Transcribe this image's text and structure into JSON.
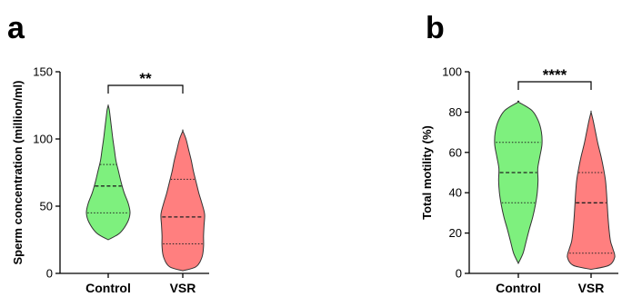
{
  "colors": {
    "control": "#7ef07e",
    "vsr": "#ff7f7f"
  },
  "chart_data": [
    {
      "type": "violin",
      "panel": "a",
      "ylabel": "Sperm concentration (million/ml)",
      "ylim": [
        0,
        150
      ],
      "yticks": [
        "0",
        "50",
        "100",
        "150"
      ],
      "categories": [
        "Control",
        "VSR"
      ],
      "significance": "**",
      "groups": [
        {
          "category": "Control",
          "min": 25,
          "max": 125,
          "q1": 45,
          "median": 65,
          "q3": 81,
          "density": [
            [
              25,
              0.0
            ],
            [
              30,
              0.45
            ],
            [
              38,
              0.75
            ],
            [
              45,
              0.85
            ],
            [
              52,
              0.78
            ],
            [
              60,
              0.62
            ],
            [
              68,
              0.5
            ],
            [
              76,
              0.4
            ],
            [
              84,
              0.3
            ],
            [
              92,
              0.24
            ],
            [
              100,
              0.18
            ],
            [
              108,
              0.13
            ],
            [
              116,
              0.08
            ],
            [
              122,
              0.04
            ],
            [
              125,
              0.0
            ]
          ]
        },
        {
          "category": "VSR",
          "min": 2,
          "max": 106,
          "q1": 22,
          "median": 42,
          "q3": 70,
          "density": [
            [
              2,
              0.0
            ],
            [
              5,
              0.5
            ],
            [
              12,
              0.72
            ],
            [
              20,
              0.78
            ],
            [
              28,
              0.78
            ],
            [
              36,
              0.8
            ],
            [
              44,
              0.82
            ],
            [
              52,
              0.72
            ],
            [
              60,
              0.6
            ],
            [
              68,
              0.5
            ],
            [
              76,
              0.4
            ],
            [
              84,
              0.32
            ],
            [
              92,
              0.22
            ],
            [
              100,
              0.12
            ],
            [
              106,
              0.0
            ]
          ]
        }
      ]
    },
    {
      "type": "violin",
      "panel": "b",
      "ylabel": "Total motility (%)",
      "ylim": [
        0,
        100
      ],
      "yticks": [
        "0",
        "20",
        "40",
        "60",
        "80",
        "100"
      ],
      "categories": [
        "Control",
        "VSR"
      ],
      "significance": "****",
      "groups": [
        {
          "category": "Control",
          "min": 5,
          "max": 85,
          "q1": 35,
          "median": 50,
          "q3": 65,
          "density": [
            [
              5,
              0.0
            ],
            [
              10,
              0.18
            ],
            [
              16,
              0.3
            ],
            [
              22,
              0.42
            ],
            [
              28,
              0.55
            ],
            [
              34,
              0.65
            ],
            [
              40,
              0.72
            ],
            [
              46,
              0.75
            ],
            [
              52,
              0.74
            ],
            [
              58,
              0.82
            ],
            [
              64,
              0.9
            ],
            [
              70,
              0.88
            ],
            [
              76,
              0.75
            ],
            [
              81,
              0.5
            ],
            [
              85,
              0.0
            ]
          ]
        },
        {
          "category": "VSR",
          "min": 2,
          "max": 80,
          "q1": 10,
          "median": 35,
          "q3": 50,
          "density": [
            [
              2,
              0.0
            ],
            [
              4,
              0.72
            ],
            [
              8,
              0.95
            ],
            [
              12,
              0.88
            ],
            [
              16,
              0.78
            ],
            [
              22,
              0.72
            ],
            [
              28,
              0.68
            ],
            [
              34,
              0.65
            ],
            [
              40,
              0.62
            ],
            [
              46,
              0.58
            ],
            [
              52,
              0.5
            ],
            [
              58,
              0.4
            ],
            [
              64,
              0.28
            ],
            [
              70,
              0.18
            ],
            [
              76,
              0.08
            ],
            [
              80,
              0.0
            ]
          ]
        }
      ]
    }
  ]
}
